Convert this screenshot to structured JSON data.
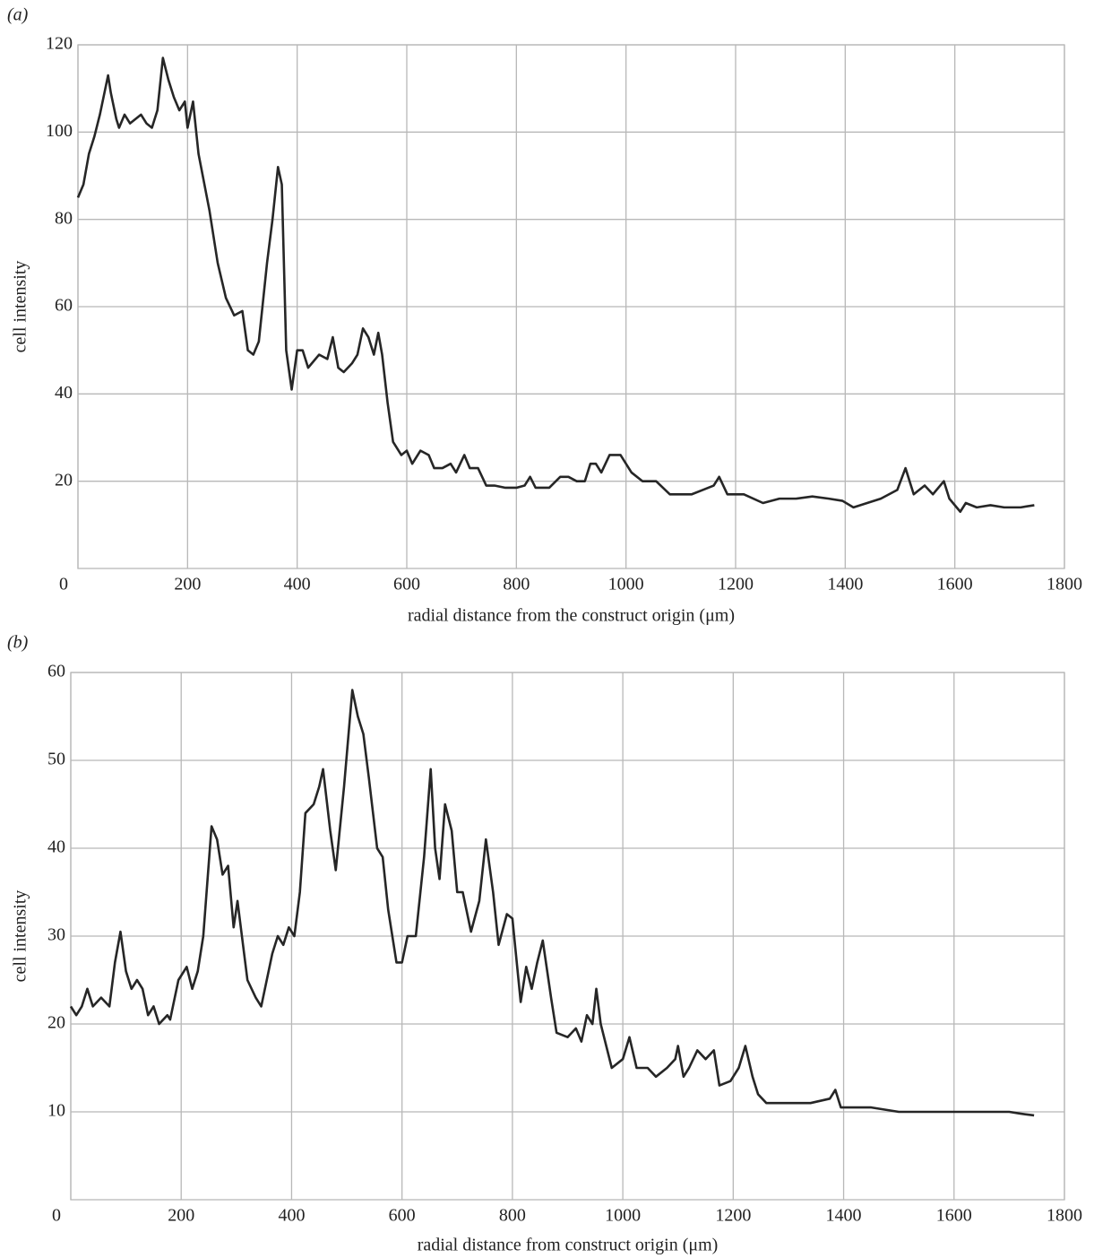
{
  "chart_data": [
    {
      "type": "line",
      "panel_label": "(a)",
      "x_label": "radial distance from the construct origin (μm)",
      "y_label": "cell intensity",
      "xlim": [
        0,
        1800
      ],
      "xticks": [
        0,
        200,
        400,
        600,
        800,
        1000,
        1200,
        1400,
        1600,
        1800
      ],
      "ylim": [
        0,
        120
      ],
      "yticks": [
        20,
        40,
        60,
        80,
        100,
        120
      ],
      "grid": true,
      "color": "#262626",
      "x": [
        0,
        10,
        20,
        30,
        40,
        50,
        55,
        60,
        70,
        75,
        85,
        95,
        105,
        115,
        125,
        135,
        145,
        155,
        165,
        175,
        185,
        195,
        200,
        210,
        220,
        240,
        255,
        270,
        285,
        300,
        310,
        320,
        330,
        345,
        355,
        365,
        372,
        380,
        390,
        400,
        410,
        420,
        440,
        455,
        465,
        475,
        485,
        500,
        510,
        520,
        530,
        540,
        548,
        555,
        565,
        575,
        590,
        600,
        610,
        625,
        640,
        650,
        665,
        680,
        690,
        705,
        715,
        730,
        745,
        760,
        780,
        800,
        815,
        825,
        835,
        860,
        880,
        895,
        910,
        925,
        935,
        945,
        955,
        970,
        990,
        1010,
        1030,
        1055,
        1080,
        1100,
        1120,
        1140,
        1160,
        1170,
        1185,
        1215,
        1250,
        1280,
        1310,
        1340,
        1370,
        1395,
        1415,
        1440,
        1465,
        1495,
        1510,
        1525,
        1545,
        1560,
        1580,
        1590,
        1610,
        1620,
        1640,
        1665,
        1690,
        1720,
        1745
      ],
      "values": [
        85,
        88,
        95,
        99,
        104,
        110,
        113,
        109,
        103,
        101,
        104,
        102,
        103,
        104,
        102,
        101,
        105,
        117,
        112,
        108,
        105,
        107,
        101,
        107,
        95,
        82,
        70,
        62,
        58,
        59,
        50,
        49,
        52,
        70,
        80,
        92,
        88,
        50,
        41,
        50,
        50,
        46,
        49,
        48,
        53,
        46,
        45,
        47,
        49,
        55,
        53,
        49,
        54,
        49,
        38,
        29,
        26,
        27,
        24,
        27,
        26,
        23,
        23,
        24,
        22,
        26,
        23,
        23,
        19,
        19,
        18.5,
        18.5,
        19,
        21,
        18.5,
        18.5,
        21,
        21,
        20,
        20,
        24,
        24,
        22,
        26,
        26,
        22,
        20,
        20,
        17,
        17,
        17,
        18,
        19,
        21,
        17,
        17,
        15,
        16,
        16,
        16.5,
        16,
        15.5,
        14,
        15,
        16,
        18,
        23,
        17,
        19,
        17,
        20,
        16,
        13,
        15,
        14,
        14.5,
        14,
        14,
        14.5
      ]
    },
    {
      "type": "line",
      "panel_label": "(b)",
      "x_label": "radial distance from construct origin (μm)",
      "y_label": "cell intensity",
      "xlim": [
        0,
        1800
      ],
      "xticks": [
        0,
        200,
        400,
        600,
        800,
        1000,
        1200,
        1400,
        1600,
        1800
      ],
      "ylim": [
        0,
        60
      ],
      "yticks": [
        10,
        20,
        30,
        40,
        50,
        60
      ],
      "grid": true,
      "color": "#262626",
      "x": [
        0,
        10,
        20,
        30,
        40,
        55,
        70,
        80,
        90,
        100,
        110,
        120,
        130,
        140,
        150,
        160,
        175,
        180,
        195,
        210,
        220,
        230,
        240,
        255,
        265,
        275,
        285,
        295,
        302,
        310,
        320,
        335,
        345,
        365,
        375,
        385,
        395,
        405,
        415,
        425,
        440,
        450,
        457,
        470,
        480,
        495,
        510,
        520,
        530,
        540,
        555,
        565,
        575,
        590,
        600,
        610,
        625,
        640,
        652,
        660,
        668,
        678,
        690,
        700,
        710,
        725,
        740,
        752,
        765,
        775,
        790,
        800,
        815,
        825,
        835,
        845,
        855,
        870,
        880,
        900,
        915,
        925,
        935,
        945,
        952,
        960,
        980,
        1000,
        1012,
        1025,
        1045,
        1060,
        1080,
        1095,
        1100,
        1110,
        1120,
        1135,
        1150,
        1165,
        1175,
        1195,
        1210,
        1222,
        1235,
        1245,
        1260,
        1300,
        1340,
        1375,
        1385,
        1395,
        1450,
        1500,
        1550,
        1600,
        1650,
        1700,
        1720,
        1745
      ],
      "values": [
        22,
        21,
        22,
        24,
        22,
        23,
        22,
        27,
        30.5,
        26,
        24,
        25,
        24,
        21,
        22,
        20,
        21,
        20.5,
        25,
        26.5,
        24,
        26,
        30,
        42.5,
        41,
        37,
        38,
        31,
        34,
        30,
        25,
        23,
        22,
        28,
        30,
        29,
        31,
        30,
        35,
        44,
        45,
        47,
        49,
        42,
        37.5,
        47,
        58,
        55,
        53,
        48,
        40,
        39,
        33,
        27,
        27,
        30,
        30,
        39,
        49,
        40,
        36.5,
        45,
        42,
        35,
        35,
        30.5,
        34,
        41,
        35,
        29,
        32.5,
        32,
        22.5,
        26.5,
        24,
        27,
        29.5,
        23,
        19,
        18.5,
        19.5,
        18,
        21,
        20,
        24,
        20,
        15,
        16,
        18.5,
        15,
        15,
        14,
        15,
        16,
        17.5,
        14,
        15,
        17,
        16,
        17,
        13,
        13.5,
        15,
        17.5,
        14,
        12,
        11,
        11,
        11,
        11.5,
        12.5,
        10.5,
        10.5,
        10,
        10,
        10,
        10,
        10,
        9.8,
        9.6
      ]
    }
  ]
}
